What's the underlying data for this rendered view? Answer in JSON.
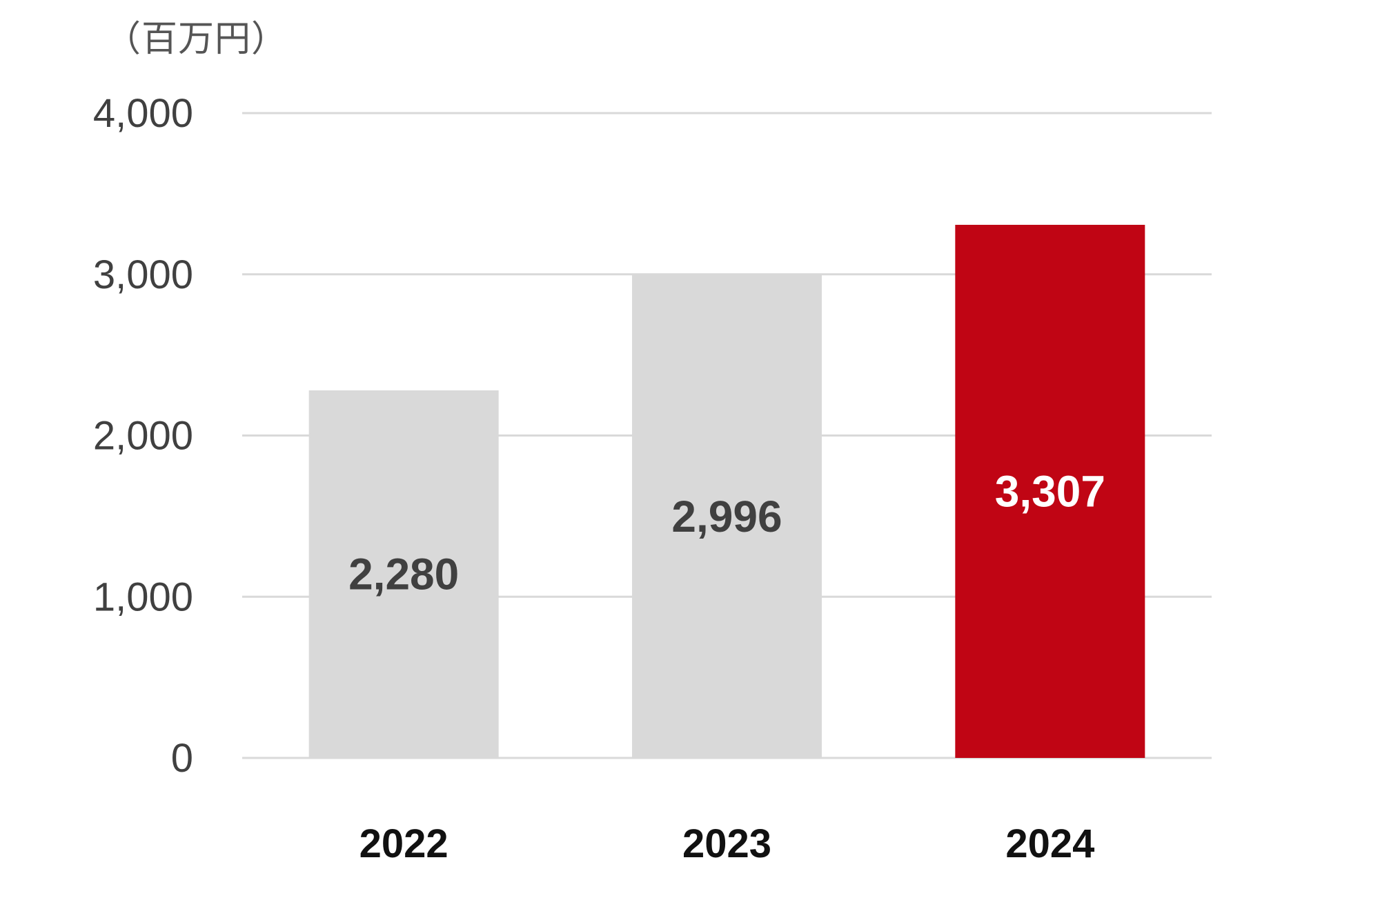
{
  "chart_data": {
    "type": "bar",
    "unit_label": "（百万円）",
    "categories": [
      "2022",
      "2023",
      "2024"
    ],
    "values": [
      2280,
      2996,
      3307
    ],
    "value_labels": [
      "2,280",
      "2,996",
      "3,307"
    ],
    "ylim": [
      0,
      4000
    ],
    "yticks": [
      0,
      1000,
      2000,
      3000,
      4000
    ],
    "ytick_labels": [
      "0",
      "1,000",
      "2,000",
      "3,000",
      "4,000"
    ],
    "grid": true,
    "legend": "none",
    "colors": {
      "default_bar": "#d9d9d9",
      "highlight_bar": "#c00514",
      "default_label": "#404040",
      "highlight_label": "#ffffff"
    },
    "highlight_index": 2
  }
}
